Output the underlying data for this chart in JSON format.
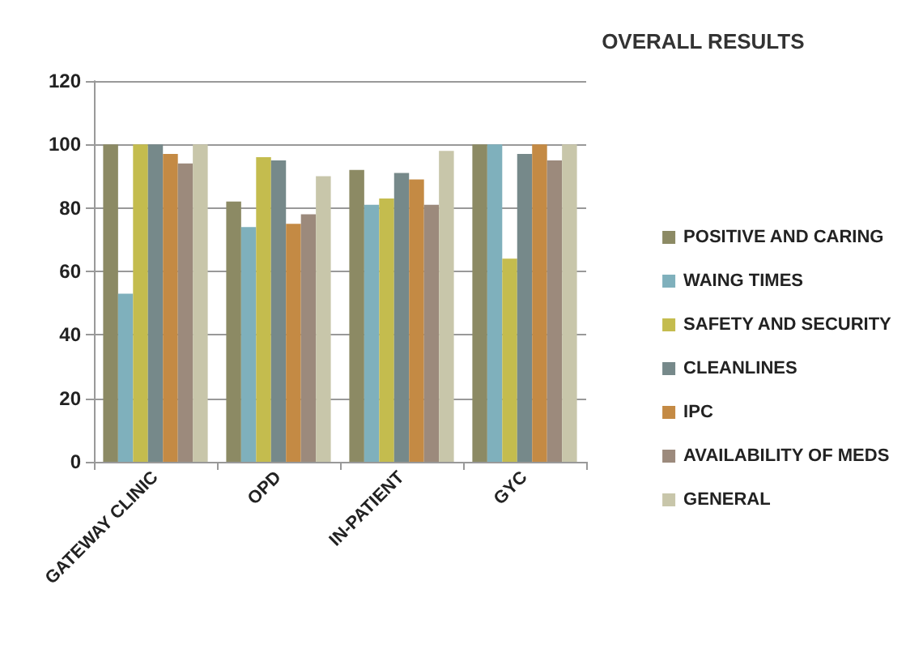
{
  "chart_data": {
    "type": "bar",
    "title": "OVERALL RESULTS",
    "categories": [
      "GATEWAY CLINIC",
      "OPD",
      "IN-PATIENT",
      "GYC"
    ],
    "series": [
      {
        "name": "POSITIVE AND CARING",
        "color": "#8c8a64",
        "values": [
          100,
          82,
          92,
          100
        ]
      },
      {
        "name": "WAING TIMES",
        "color": "#7fb0bc",
        "values": [
          53,
          74,
          81,
          100
        ]
      },
      {
        "name": "SAFETY AND SECURITY",
        "color": "#c4bc4e",
        "values": [
          100,
          96,
          83,
          64
        ]
      },
      {
        "name": "CLEANLINES",
        "color": "#76898a",
        "values": [
          100,
          95,
          91,
          97
        ]
      },
      {
        "name": "IPC",
        "color": "#c48a44",
        "values": [
          97,
          75,
          89,
          100
        ]
      },
      {
        "name": "AVAILABILITY OF MEDS",
        "color": "#9c8a7c",
        "values": [
          94,
          78,
          81,
          95
        ]
      },
      {
        "name": "GENERAL",
        "color": "#c8c6aa",
        "values": [
          100,
          90,
          98,
          100
        ]
      }
    ],
    "ylim": [
      0,
      120
    ],
    "yticks": [
      0,
      20,
      40,
      60,
      80,
      100,
      120
    ],
    "grid": "y",
    "legend": "right"
  }
}
